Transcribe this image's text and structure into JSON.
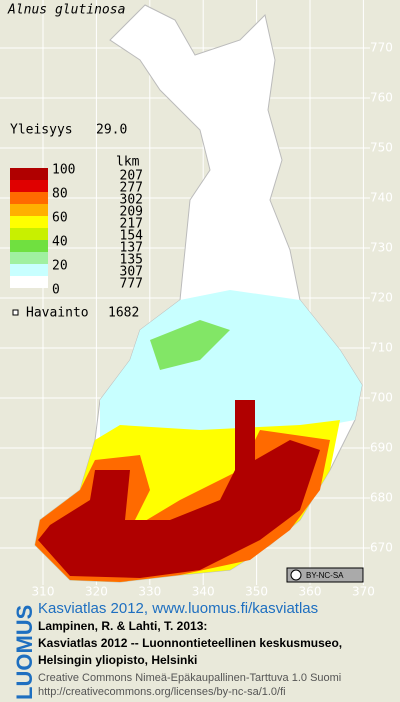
{
  "header": {
    "title": "Alnus glutinosa"
  },
  "stats": {
    "label": "Yleisyys",
    "value": "29.0"
  },
  "legend": {
    "levels": [
      "100",
      "80",
      "60",
      "40",
      "20",
      "0"
    ],
    "count_header": "lkm",
    "counts": [
      "207",
      "277",
      "302",
      "209",
      "217",
      "154",
      "137",
      "135",
      "307",
      "777"
    ],
    "colors": [
      "#b00000",
      "#e00000",
      "#ff6a00",
      "#ffb000",
      "#ffff00",
      "#c8f000",
      "#70e040",
      "#a0f0a0",
      "#c8ffff",
      "#ffffff"
    ]
  },
  "observation": {
    "label": "Havainto",
    "count": "1682"
  },
  "axis": {
    "y": [
      "770",
      "760",
      "750",
      "740",
      "730",
      "720",
      "710",
      "700",
      "690",
      "680",
      "670"
    ],
    "x": [
      "310",
      "320",
      "330",
      "340",
      "350",
      "360",
      "370"
    ]
  },
  "badge": "BY-NC-SA",
  "footer": {
    "brand": "LUOMUS",
    "link": "Kasviatlas 2012, www.luomus.fi/kasviatlas",
    "citation": [
      "Lampinen, R. & Lahti, T. 2013:",
      "Kasviatlas 2012 -- Luonnontieteellinen keskusmuseo,",
      "Helsingin yliopisto, Helsinki"
    ],
    "license": [
      "Creative Commons Nimeä-Epäkaupallinen-Tarttuva 1.0 Suomi",
      "http://creativecommons.org/licenses/by-nc-sa/1.0/fi"
    ]
  }
}
